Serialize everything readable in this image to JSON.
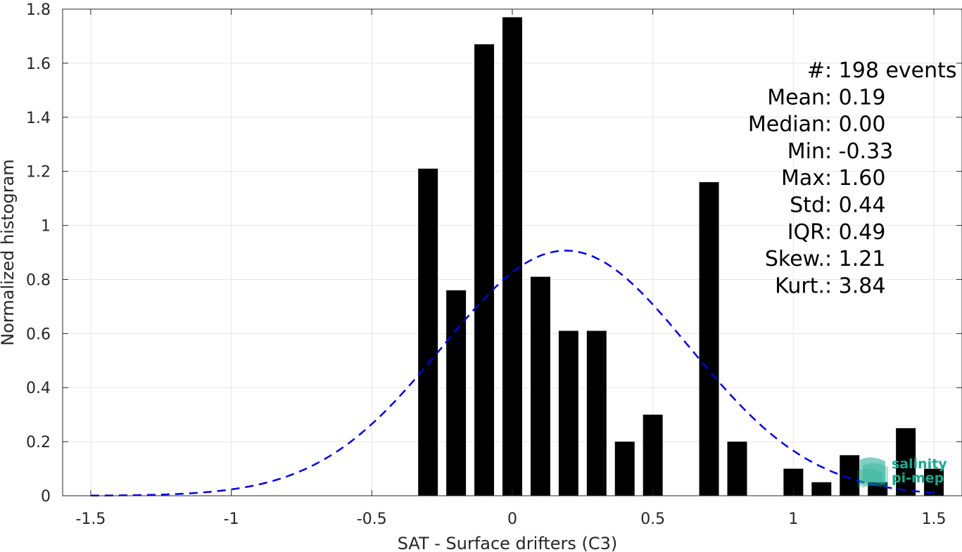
{
  "chart_data": {
    "type": "bar",
    "xlabel": "SAT - Surface drifters (C3)",
    "ylabel": "Normalized histogram",
    "xlim": [
      -1.6,
      1.6
    ],
    "ylim": [
      0,
      1.8
    ],
    "grid": true,
    "x_ticks": [
      "-1.5",
      "-1",
      "-0.5",
      "0",
      "0.5",
      "1",
      "1.5"
    ],
    "y_ticks": [
      "0",
      "0.2",
      "0.4",
      "0.6",
      "0.8",
      "1",
      "1.2",
      "1.4",
      "1.6",
      "1.8"
    ],
    "bar_color": "#000000",
    "bar_width": 0.07,
    "bars": [
      {
        "x": -0.3,
        "y": 1.21
      },
      {
        "x": -0.2,
        "y": 0.76
      },
      {
        "x": -0.1,
        "y": 1.67
      },
      {
        "x": 0.0,
        "y": 1.77
      },
      {
        "x": 0.1,
        "y": 0.81
      },
      {
        "x": 0.2,
        "y": 0.61
      },
      {
        "x": 0.3,
        "y": 0.61
      },
      {
        "x": 0.4,
        "y": 0.2
      },
      {
        "x": 0.5,
        "y": 0.3
      },
      {
        "x": 0.7,
        "y": 1.16
      },
      {
        "x": 0.8,
        "y": 0.2
      },
      {
        "x": 1.0,
        "y": 0.1
      },
      {
        "x": 1.1,
        "y": 0.05
      },
      {
        "x": 1.2,
        "y": 0.15
      },
      {
        "x": 1.3,
        "y": 0.05
      },
      {
        "x": 1.4,
        "y": 0.25
      },
      {
        "x": 1.5,
        "y": 0.1
      }
    ],
    "fit_curve": {
      "style": "dashed",
      "color": "#0000e0",
      "mean": 0.19,
      "std": 0.44,
      "x_range": [
        -1.5,
        1.5
      ]
    },
    "stats": [
      {
        "label": "#  ",
        "value": ": 198 events"
      },
      {
        "label": "Mean ",
        "value": ": 0.19"
      },
      {
        "label": "Median ",
        "value": ": 0.00"
      },
      {
        "label": "Min ",
        "value": ": -0.33"
      },
      {
        "label": "Max ",
        "value": ": 1.60"
      },
      {
        "label": "Std ",
        "value": ": 0.44"
      },
      {
        "label": "IQR ",
        "value": ": 0.49"
      },
      {
        "label": "Skew. ",
        "value": ": 1.21"
      },
      {
        "label": "Kurt. ",
        "value": ": 3.84"
      }
    ]
  },
  "logo": {
    "line1": "salinity",
    "line2": "pi-mep",
    "color": "#1aa88f"
  }
}
